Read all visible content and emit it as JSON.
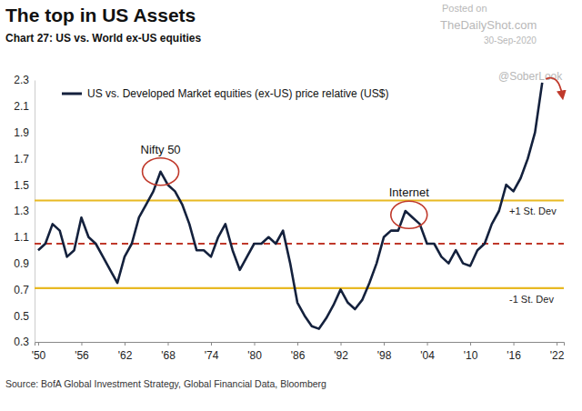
{
  "chart_data": {
    "type": "line",
    "title": "The top in US Assets",
    "subtitle": "Chart 27: US vs. World ex-US equities",
    "source": "Source: BofA Global Investment Strategy, Global Financial Data, Bloomberg",
    "watermark": [
      "Posted on",
      "TheDailyShot.com",
      "30-Sep-2020",
      "@SoberLook"
    ],
    "legend": "top-left",
    "x": [
      1950,
      1951,
      1952,
      1953,
      1954,
      1955,
      1956,
      1957,
      1958,
      1959,
      1960,
      1961,
      1962,
      1963,
      1964,
      1965,
      1966,
      1967,
      1968,
      1969,
      1970,
      1971,
      1972,
      1973,
      1974,
      1975,
      1976,
      1977,
      1978,
      1979,
      1980,
      1981,
      1982,
      1983,
      1984,
      1985,
      1986,
      1987,
      1988,
      1989,
      1990,
      1991,
      1992,
      1993,
      1994,
      1995,
      1996,
      1997,
      1998,
      1999,
      2000,
      2001,
      2002,
      2003,
      2004,
      2005,
      2006,
      2007,
      2008,
      2009,
      2010,
      2011,
      2012,
      2013,
      2014,
      2015,
      2016,
      2017,
      2018,
      2019,
      2020
    ],
    "series": [
      {
        "name": "US vs. Developed Market equities (ex-US) price relative (US$)",
        "color": "#14213d",
        "values": [
          1.0,
          1.05,
          1.2,
          1.15,
          0.95,
          1.0,
          1.25,
          1.1,
          1.05,
          0.95,
          0.85,
          0.75,
          0.95,
          1.05,
          1.25,
          1.35,
          1.45,
          1.6,
          1.5,
          1.45,
          1.35,
          1.2,
          1.0,
          1.0,
          0.95,
          1.1,
          1.2,
          1.0,
          0.85,
          0.95,
          1.05,
          1.05,
          1.1,
          1.05,
          1.15,
          0.9,
          0.6,
          0.5,
          0.42,
          0.4,
          0.48,
          0.58,
          0.7,
          0.6,
          0.55,
          0.62,
          0.75,
          0.9,
          1.1,
          1.15,
          1.15,
          1.3,
          1.25,
          1.2,
          1.05,
          1.05,
          0.95,
          0.9,
          1.0,
          0.9,
          0.88,
          1.0,
          1.05,
          1.2,
          1.3,
          1.5,
          1.45,
          1.55,
          1.7,
          1.9,
          2.28
        ]
      }
    ],
    "xlim": [
      1949.5,
      2023
    ],
    "xticks": [
      {
        "value": 1950,
        "label": "'50"
      },
      {
        "value": 1956,
        "label": "'56"
      },
      {
        "value": 1962,
        "label": "'62"
      },
      {
        "value": 1968,
        "label": "'68"
      },
      {
        "value": 1974,
        "label": "'74"
      },
      {
        "value": 1980,
        "label": "'80"
      },
      {
        "value": 1986,
        "label": "'86"
      },
      {
        "value": 1992,
        "label": "'92"
      },
      {
        "value": 1998,
        "label": "'98"
      },
      {
        "value": 2004,
        "label": "'04"
      },
      {
        "value": 2010,
        "label": "'10"
      },
      {
        "value": 2016,
        "label": "'16"
      },
      {
        "value": 2022,
        "label": "'22"
      }
    ],
    "ylim": [
      0.3,
      2.3
    ],
    "yticks": [
      0.3,
      0.5,
      0.7,
      0.9,
      1.1,
      1.3,
      1.5,
      1.7,
      1.9,
      2.1,
      2.3
    ],
    "grid": false,
    "reference_lines": [
      {
        "value": 1.38,
        "label": "+1 St. Dev",
        "color": "#e8b923",
        "line_style": "solid"
      },
      {
        "value": 1.05,
        "color": "#c0392b",
        "line_style": "dashed"
      },
      {
        "value": 0.71,
        "label": "-1 St. Dev",
        "color": "#e8b923",
        "line_style": "solid"
      }
    ],
    "annotations": [
      {
        "text": "Nifty 50",
        "x": 1967,
        "y": 1.6
      },
      {
        "text": "Internet",
        "x": 2001.5,
        "y": 1.27
      }
    ]
  }
}
